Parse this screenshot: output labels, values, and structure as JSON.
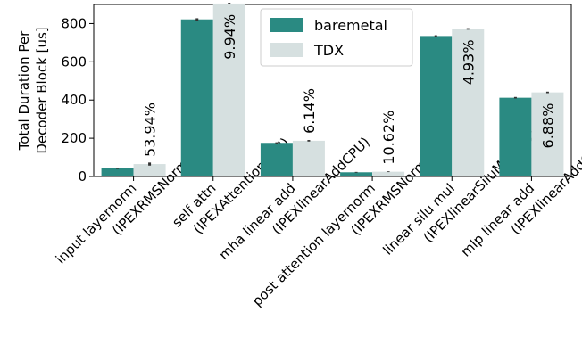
{
  "chart_data": {
    "type": "bar",
    "ylabel": "Total Duration Per\nDecoder Block [us]",
    "ylim": [
      0,
      900
    ],
    "yticks": [
      0,
      200,
      400,
      600,
      800
    ],
    "categories": [
      "input layernorm\n(IPEXRMSNormCPU)",
      "self attn\n(IPEXAttentionCPU)",
      "mha linear add\n(IPEXlinearAddCPU)",
      "post attention layernorm\n(IPEXRMSNormCPU)",
      "linear silu mul\n(IPEXlinearSiluMulCPU)",
      "mlp linear add\n(IPEXlinearAddCPU)"
    ],
    "series": [
      {
        "name": "baremetal",
        "color": "#2a8a82",
        "values": [
          42,
          822,
          176,
          22,
          735,
          412
        ],
        "errors": [
          3,
          6,
          3,
          2,
          4,
          4
        ]
      },
      {
        "name": "TDX",
        "color": "#d6e0e0",
        "values": [
          65,
          905,
          187,
          25,
          772,
          440
        ],
        "errors": [
          8,
          4,
          4,
          2,
          4,
          4
        ]
      }
    ],
    "annotations": [
      "53.94%",
      "9.94%",
      "6.14%",
      "10.62%",
      "4.93%",
      "6.88%"
    ],
    "legend": {
      "position": "top-center"
    },
    "grid": false
  }
}
